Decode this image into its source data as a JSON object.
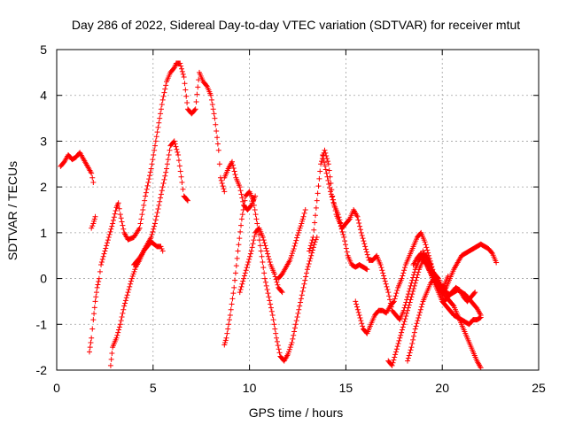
{
  "chart_data": {
    "type": "scatter",
    "title": "Day 286 of 2022, Sidereal Day-to-day VTEC variation (SDTVAR) for receiver mtut",
    "xlabel": "GPS time / hours",
    "ylabel": "SDTVAR / TECUs",
    "xlim": [
      0,
      25
    ],
    "ylim": [
      -2,
      5
    ],
    "xticks": [
      0,
      5,
      10,
      15,
      20,
      25
    ],
    "yticks": [
      -2,
      -1,
      0,
      1,
      2,
      3,
      4,
      5
    ],
    "xtick_labels": [
      "0",
      "5",
      "10",
      "15",
      "20",
      "25"
    ],
    "ytick_labels": [
      "-2",
      "-1",
      "0",
      "1",
      "2",
      "3",
      "4",
      "5"
    ],
    "grid": true,
    "marker": "+",
    "marker_color": "#ff0000",
    "series": [
      {
        "name": "s1",
        "x": [
          0.2,
          0.4,
          0.6,
          0.8,
          1.0,
          1.2,
          1.4,
          1.6,
          1.8,
          1.9
        ],
        "y": [
          2.45,
          2.55,
          2.7,
          2.6,
          2.65,
          2.75,
          2.6,
          2.45,
          2.3,
          2.1
        ]
      },
      {
        "name": "s2",
        "x": [
          1.8,
          1.9,
          2.0
        ],
        "y": [
          1.1,
          1.2,
          1.35
        ]
      },
      {
        "name": "s3",
        "x": [
          1.7,
          1.8,
          1.9,
          2.0,
          2.1,
          2.2,
          2.3,
          2.5,
          2.7,
          2.9,
          3.1,
          3.2,
          3.3,
          3.5,
          3.7,
          4.0,
          4.3,
          4.6,
          4.9,
          5.1,
          5.3,
          5.5,
          5.7,
          5.9,
          6.1,
          6.2,
          6.4,
          6.6,
          6.8,
          7.0,
          7.2,
          7.4,
          7.6,
          7.8,
          8.0,
          8.2,
          8.4,
          8.5,
          8.7
        ],
        "y": [
          -1.6,
          -1.3,
          -0.9,
          -0.5,
          -0.2,
          0.0,
          0.3,
          0.6,
          0.9,
          1.2,
          1.55,
          1.65,
          1.4,
          1.0,
          0.85,
          0.9,
          1.1,
          1.8,
          2.4,
          2.9,
          3.4,
          3.9,
          4.3,
          4.5,
          4.6,
          4.7,
          4.7,
          4.4,
          3.7,
          3.6,
          3.7,
          4.5,
          4.3,
          4.2,
          4.0,
          3.5,
          2.8,
          2.2,
          1.9
        ]
      },
      {
        "name": "s4",
        "x": [
          2.8,
          2.9,
          3.1,
          3.3,
          3.5,
          3.7,
          3.9,
          4.1,
          4.3,
          4.5,
          4.7,
          4.9,
          5.1,
          5.3,
          5.5,
          5.7,
          5.9,
          6.1,
          6.3,
          6.5,
          6.6,
          6.8
        ],
        "y": [
          -1.9,
          -1.5,
          -1.3,
          -1.0,
          -0.6,
          -0.3,
          0.0,
          0.25,
          0.4,
          0.6,
          0.75,
          0.9,
          1.2,
          1.6,
          2.0,
          2.4,
          2.9,
          3.0,
          2.7,
          2.1,
          1.8,
          1.7
        ]
      },
      {
        "name": "s5",
        "x": [
          4.0,
          4.3,
          4.6,
          4.9,
          5.2,
          5.4,
          5.5
        ],
        "y": [
          0.3,
          0.45,
          0.65,
          0.8,
          0.7,
          0.7,
          0.6
        ]
      },
      {
        "name": "s6",
        "x": [
          8.7,
          8.9,
          9.1,
          9.3,
          9.5,
          9.7,
          9.9,
          10.1,
          10.3
        ],
        "y": [
          2.2,
          2.4,
          2.55,
          2.2,
          2.0,
          1.6,
          1.5,
          1.6,
          1.8
        ]
      },
      {
        "name": "s7",
        "x": [
          8.7,
          8.8,
          9.0,
          9.2,
          9.4,
          9.6,
          9.8,
          10.0,
          10.2,
          10.4,
          10.6,
          10.8,
          11.0,
          11.2,
          11.4,
          11.6,
          11.8,
          12.0,
          12.2,
          12.4,
          12.6,
          12.8,
          13.0,
          13.2,
          13.4,
          13.5
        ],
        "y": [
          -1.45,
          -1.3,
          -0.8,
          -0.2,
          0.6,
          1.3,
          1.8,
          1.9,
          1.7,
          1.2,
          0.6,
          0.0,
          -0.4,
          -0.8,
          -1.3,
          -1.7,
          -1.8,
          -1.65,
          -1.4,
          -1.0,
          -0.6,
          -0.2,
          0.2,
          0.5,
          0.8,
          0.9
        ]
      },
      {
        "name": "s8",
        "x": [
          9.5,
          9.7,
          9.9,
          10.1,
          10.3,
          10.5,
          10.7,
          10.9,
          11.1,
          11.3,
          11.5,
          11.7
        ],
        "y": [
          -0.3,
          0.0,
          0.3,
          0.6,
          1.0,
          1.1,
          0.9,
          0.6,
          0.3,
          0.1,
          -0.2,
          -0.3
        ]
      },
      {
        "name": "s9",
        "x": [
          11.5,
          11.7,
          11.9,
          12.1,
          12.3,
          12.5,
          12.7,
          12.8,
          12.9
        ],
        "y": [
          0.0,
          0.1,
          0.25,
          0.4,
          0.65,
          0.95,
          1.2,
          1.35,
          1.5
        ]
      },
      {
        "name": "s10",
        "x": [
          13.1,
          13.3,
          13.5,
          13.7,
          13.9,
          14.1,
          14.3,
          14.5,
          14.7,
          14.9,
          15.1,
          15.3,
          15.5,
          15.7,
          15.9,
          16.1
        ],
        "y": [
          0.6,
          0.9,
          1.7,
          2.5,
          2.8,
          2.5,
          1.8,
          1.4,
          1.2,
          0.9,
          0.5,
          0.3,
          0.25,
          0.3,
          0.25,
          0.2
        ]
      },
      {
        "name": "s11",
        "x": [
          13.8,
          14.0,
          14.2,
          14.4,
          14.6,
          14.8,
          15.0,
          15.2,
          15.4,
          15.6,
          15.8,
          16.0,
          16.2,
          16.4,
          16.6,
          16.8,
          17.0,
          17.2,
          17.4,
          17.6,
          17.8,
          18.0,
          18.2,
          18.4,
          18.6,
          18.8,
          19.0,
          19.2,
          19.4,
          19.6,
          19.8,
          20.0,
          20.2,
          20.4,
          20.6,
          20.8,
          21.0,
          21.2,
          21.4,
          21.6,
          21.8,
          22.0
        ],
        "y": [
          2.7,
          2.3,
          1.9,
          1.6,
          1.4,
          1.1,
          1.2,
          1.3,
          1.5,
          1.35,
          1.0,
          0.7,
          0.4,
          0.4,
          0.5,
          0.3,
          0.0,
          -0.3,
          -0.7,
          -0.8,
          -0.9,
          -0.7,
          -0.4,
          -0.1,
          0.2,
          0.4,
          0.5,
          0.5,
          0.3,
          0.0,
          -0.2,
          -0.3,
          -0.4,
          -0.5,
          -0.6,
          -0.8,
          -1.0,
          -1.2,
          -1.4,
          -1.6,
          -1.8,
          -1.95
        ]
      },
      {
        "name": "s12",
        "x": [
          15.5,
          15.7,
          15.9,
          16.1,
          16.3,
          16.5,
          16.7,
          16.9,
          17.1,
          17.3,
          17.5,
          17.7,
          17.9,
          18.1,
          18.3,
          18.5,
          18.7,
          18.9,
          19.1,
          19.3,
          19.5,
          19.7,
          19.9,
          20.1,
          20.3,
          20.5,
          20.7,
          20.9,
          21.1,
          21.3,
          21.5,
          21.7
        ],
        "y": [
          -0.5,
          -0.8,
          -1.1,
          -1.2,
          -1.0,
          -0.8,
          -0.7,
          -0.7,
          -0.75,
          -0.6,
          -0.5,
          -0.2,
          0.0,
          0.3,
          0.5,
          0.7,
          0.9,
          1.0,
          0.8,
          0.5,
          0.2,
          -0.1,
          -0.3,
          -0.5,
          -0.4,
          -0.3,
          -0.2,
          -0.25,
          -0.4,
          -0.5,
          -0.4,
          -0.3
        ]
      },
      {
        "name": "s13",
        "x": [
          17.2,
          17.4,
          17.6,
          17.8,
          18.0,
          18.2,
          18.4,
          18.6,
          18.8,
          19.0,
          19.2,
          19.4,
          19.6,
          19.8,
          20.0,
          20.2,
          20.4,
          20.6,
          20.8,
          21.0,
          21.2,
          21.4,
          21.6,
          21.8,
          22.0
        ],
        "y": [
          -1.8,
          -1.9,
          -1.6,
          -1.3,
          -1.0,
          -0.7,
          -0.4,
          -0.1,
          0.2,
          0.4,
          0.3,
          0.1,
          -0.1,
          -0.3,
          -0.5,
          -0.6,
          -0.7,
          -0.8,
          -0.85,
          -0.9,
          -0.95,
          -1.0,
          -0.9,
          -0.9,
          -0.85
        ]
      },
      {
        "name": "s14",
        "x": [
          18.2,
          18.4,
          18.6,
          18.8,
          19.0,
          19.2,
          19.4,
          19.6,
          19.8,
          20.0,
          20.2,
          20.4,
          20.6,
          20.8,
          21.0,
          21.2,
          21.4,
          21.6,
          21.8,
          22.0,
          22.2,
          22.4,
          22.6,
          22.8
        ],
        "y": [
          -1.8,
          -1.5,
          -1.1,
          -0.8,
          -0.5,
          -0.3,
          -0.1,
          0.0,
          -0.1,
          -0.3,
          -0.2,
          0.0,
          0.2,
          0.35,
          0.5,
          0.55,
          0.6,
          0.65,
          0.7,
          0.75,
          0.7,
          0.65,
          0.55,
          0.35
        ]
      },
      {
        "name": "s15",
        "x": [
          18.5,
          18.7,
          18.9,
          19.1,
          19.3,
          19.5,
          19.7,
          19.9,
          20.1,
          20.3
        ],
        "y": [
          0.3,
          0.45,
          0.55,
          0.4,
          0.2,
          0.05,
          -0.1,
          -0.2,
          -0.15,
          0.05
        ]
      },
      {
        "name": "s16",
        "x": [
          19.0,
          19.2,
          19.4,
          19.6,
          19.8,
          20.0,
          20.2,
          20.4,
          20.6,
          20.8,
          21.0,
          21.2,
          21.4,
          21.6,
          21.8,
          22.0
        ],
        "y": [
          0.6,
          0.4,
          0.2,
          0.1,
          0.0,
          -0.2,
          -0.3,
          -0.35,
          -0.3,
          -0.25,
          -0.3,
          -0.35,
          -0.45,
          -0.55,
          -0.65,
          -0.8
        ]
      }
    ]
  }
}
